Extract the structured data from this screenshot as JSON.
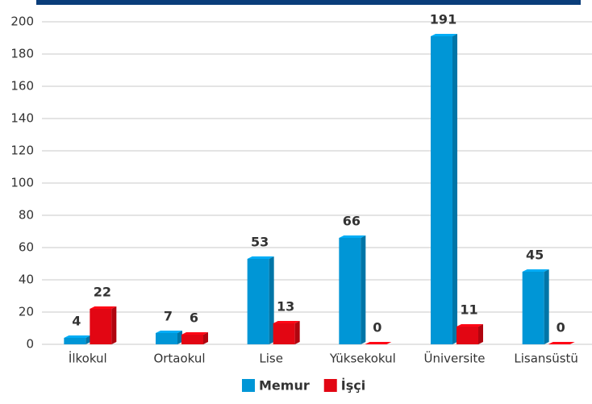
{
  "chart_data": {
    "type": "bar",
    "categories": [
      "İlkokul",
      "Ortaokul",
      "Lise",
      "Yüksekokul",
      "Üniversite",
      "Lisansüstü"
    ],
    "series": [
      {
        "name": "Memur",
        "color": "#0096d6",
        "values": [
          4,
          7,
          53,
          66,
          191,
          45
        ]
      },
      {
        "name": "İşçi",
        "color": "#e20613",
        "values": [
          22,
          6,
          13,
          0,
          11,
          0
        ]
      }
    ],
    "ylim": [
      0,
      200
    ],
    "yticks": [
      0,
      20,
      40,
      60,
      80,
      100,
      120,
      140,
      160,
      180,
      200
    ],
    "grid": true,
    "legend": "bottom"
  }
}
